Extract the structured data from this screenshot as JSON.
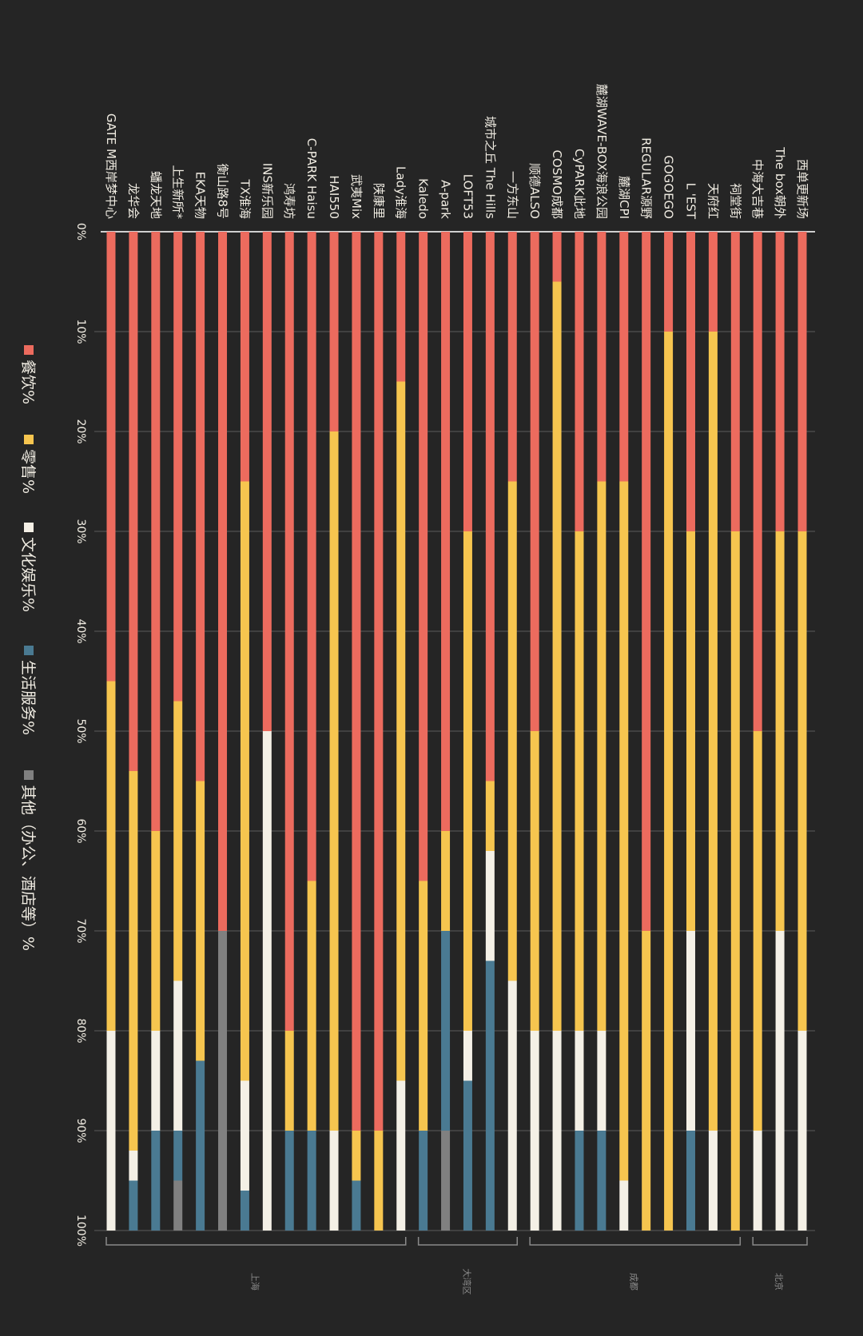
{
  "chart_data": {
    "type": "bar",
    "stacked": true,
    "orientation": "rotated-90",
    "categories": [
      "GATE M西岸梦中心",
      "龙华会",
      "蟠龙天地",
      "上生新所*",
      "EKA天物",
      "衡山路8号",
      "TX淮海",
      "INS新乐园",
      "鸿寿坊",
      "C-PARK Haisu",
      "HAI550",
      "武夷Mix",
      "陕康里",
      "Lady淮海",
      "Kaledo",
      "A-park",
      "LOFT53",
      "城市之丘 The Hills",
      "一方东山",
      "顺德ALSO",
      "COSMO成都",
      "CyPARK此地",
      "麓湖WAVE-BOX海浪公园",
      "麓湖CPI",
      "REGULAR源野",
      "GOGOEGO",
      "L 'EST",
      "天府红",
      "祠堂街",
      "中海大吉巷",
      "The box朝外",
      "西单更新场"
    ],
    "series": [
      {
        "name": "餐饮%",
        "color": "#EC6B5E",
        "values": [
          45,
          54,
          60,
          47,
          55,
          70,
          25,
          50,
          80,
          65,
          20,
          90,
          90,
          15,
          65,
          60,
          30,
          55,
          25,
          50,
          5,
          30,
          25,
          25,
          70,
          10,
          30,
          10,
          30,
          50,
          30,
          30
        ]
      },
      {
        "name": "零售%",
        "color": "#F6C54F",
        "values": [
          35,
          38,
          20,
          28,
          28,
          0,
          60,
          0,
          10,
          25,
          70,
          5,
          10,
          70,
          25,
          10,
          50,
          7,
          50,
          30,
          75,
          50,
          55,
          70,
          30,
          90,
          40,
          80,
          70,
          40,
          40,
          50
        ]
      },
      {
        "name": "文化娱乐%",
        "color": "#F4F0E6",
        "values": [
          20,
          3,
          10,
          15,
          0,
          0,
          11,
          50,
          0,
          0,
          10,
          0,
          0,
          15,
          0,
          0,
          5,
          11,
          25,
          20,
          20,
          10,
          10,
          5,
          0,
          0,
          20,
          10,
          0,
          10,
          30,
          20
        ]
      },
      {
        "name": "生活服务%",
        "color": "#4A7A92",
        "values": [
          0,
          5,
          10,
          5,
          17,
          0,
          4,
          0,
          10,
          10,
          0,
          5,
          0,
          0,
          10,
          20,
          15,
          27,
          0,
          0,
          0,
          10,
          10,
          0,
          0,
          0,
          10,
          0,
          0,
          0,
          0,
          0
        ]
      },
      {
        "name": "其他（办公、酒店等）%",
        "color": "#808080",
        "values": [
          0,
          0,
          0,
          5,
          0,
          30,
          0,
          0,
          0,
          0,
          0,
          0,
          0,
          0,
          0,
          10,
          0,
          0,
          0,
          0,
          0,
          0,
          0,
          0,
          0,
          0,
          0,
          0,
          0,
          0,
          0,
          0
        ]
      }
    ],
    "ticks": [
      "0%",
      "10%",
      "20%",
      "30%",
      "40%",
      "50%",
      "60%",
      "70%",
      "80%",
      "90%",
      "100%"
    ],
    "ylim": [
      0,
      100
    ],
    "grid": true,
    "legend_placement": "left",
    "groups": [
      {
        "label": "上海",
        "from": 0,
        "to": 13
      },
      {
        "label": "大湾区",
        "from": 14,
        "to": 18
      },
      {
        "label": "成都",
        "from": 19,
        "to": 28
      },
      {
        "label": "北京",
        "from": 29,
        "to": 31
      }
    ]
  }
}
